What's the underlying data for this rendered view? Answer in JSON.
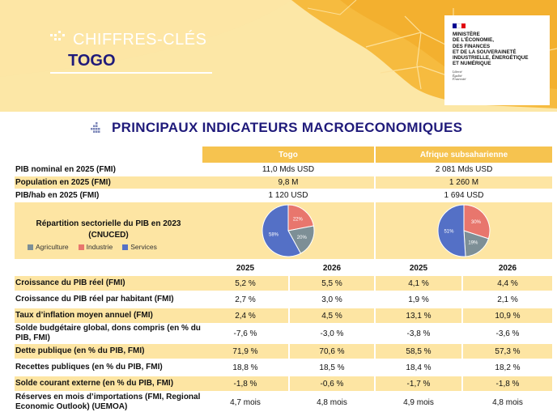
{
  "banner": {
    "kicker": "CHIFFRES-CLÉS",
    "country": "TOGO",
    "ministry_lines": [
      "MINISTÈRE",
      "DE L'ÉCONOMIE,",
      "DES FINANCES",
      "ET DE LA SOUVERAINETÉ",
      "INDUSTRIELLE, ÉNERGÉTIQUE",
      "ET NUMÉRIQUE"
    ],
    "motto": [
      "Liberté",
      "Égalité",
      "Fraternité"
    ],
    "flag_colors": [
      "#000091",
      "#ffffff",
      "#e1000f"
    ]
  },
  "section": {
    "title": "PRINCIPAUX INDICATEURS MACROECONOMIQUES",
    "icon": "grid-dots-icon"
  },
  "headers": {
    "togo": "Togo",
    "ssa": "Afrique subsaharienne"
  },
  "top_rows": [
    {
      "label": "PIB nominal en 2025 (FMI)",
      "togo": "11,0 Mds USD",
      "ssa": "2 081 Mds USD",
      "highlight": false
    },
    {
      "label": "Population en 2025 (FMI)",
      "togo": "9,8  M",
      "ssa": "1 260 M",
      "highlight": true
    },
    {
      "label": "PIB/hab en 2025 (FMI)",
      "togo": "1 120 USD",
      "ssa": "1 694 USD",
      "highlight": false
    }
  ],
  "pie_section": {
    "title_line1": "Répartition sectorielle du PIB en 2023",
    "title_line2": "(CNUCED)",
    "legend": [
      {
        "label": "Agriculture",
        "color": "#7d8f96"
      },
      {
        "label": "Industrie",
        "color": "#e8766d"
      },
      {
        "label": "Services",
        "color": "#5470c6"
      }
    ]
  },
  "chart_data": [
    {
      "type": "pie",
      "title": "Togo",
      "categories": [
        "Industrie",
        "Agriculture",
        "Services"
      ],
      "values": [
        22,
        20,
        58
      ],
      "labels": [
        "22%",
        "20%",
        "58%"
      ],
      "colors": [
        "#e8766d",
        "#7d8f96",
        "#5470c6"
      ]
    },
    {
      "type": "pie",
      "title": "Afrique subsaharienne",
      "categories": [
        "Industrie",
        "Agriculture",
        "Services"
      ],
      "values": [
        30,
        19,
        51
      ],
      "labels": [
        "30%",
        "19%",
        "51%"
      ],
      "colors": [
        "#e8766d",
        "#7d8f96",
        "#5470c6"
      ]
    }
  ],
  "years": [
    "2025",
    "2026",
    "2025",
    "2026"
  ],
  "rows": [
    {
      "label": "Croissance du PIB réel (FMI)",
      "values": [
        "5,2 %",
        "5,5 %",
        "4,1 %",
        "4,4 %"
      ],
      "highlight": true
    },
    {
      "label": "Croissance du PIB réel par habitant (FMI)",
      "values": [
        "2,7 %",
        "3,0 %",
        "1,9 %",
        "2,1 %"
      ],
      "highlight": false
    },
    {
      "label": "Taux d’inflation moyen annuel (FMI)",
      "values": [
        "2,4 %",
        "4,5 %",
        "13,1 %",
        "10,9 %"
      ],
      "highlight": true
    },
    {
      "label": "Solde budgétaire global, dons compris (en % du PIB, FMI)",
      "values": [
        "-7,6 %",
        "-3,0 %",
        "-3,8 %",
        "-3,6 %"
      ],
      "highlight": false
    },
    {
      "label": "Dette publique (en % du PIB, FMI)",
      "values": [
        "71,9 %",
        "70,6 %",
        "58,5 %",
        "57,3 %"
      ],
      "highlight": true
    },
    {
      "label": "Recettes publiques (en % du PIB, FMI)",
      "values": [
        "18,8 %",
        "18,5 %",
        "18,4 %",
        "18,2 %"
      ],
      "highlight": false
    },
    {
      "label": "Solde courant externe (en % du PIB, FMI)",
      "values": [
        "-1,8 %",
        "-0,6 %",
        "-1,7 %",
        "-1,8 %"
      ],
      "highlight": true
    },
    {
      "label": "Réserves en mois d’importations (FMI, Regional Economic Outlook) (UEMOA)",
      "values": [
        "4,7 mois",
        "4,8 mois",
        "4,9 mois",
        "4,8 mois"
      ],
      "highlight": false
    }
  ]
}
